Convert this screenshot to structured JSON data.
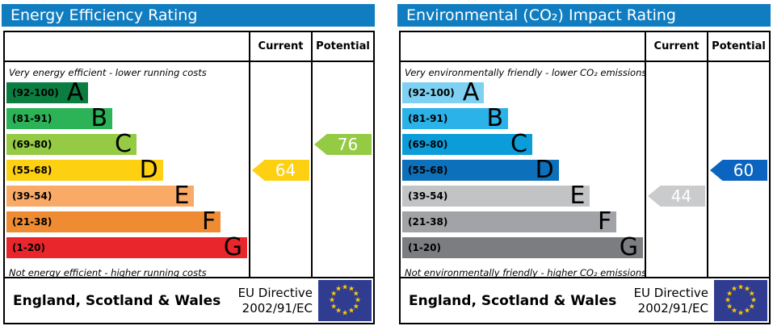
{
  "colors": {
    "header_bg": "#117dc1",
    "flag_bg": "#303c8f",
    "star": "#ffcc00",
    "border": "#000000",
    "arrow_text": "#ffffff"
  },
  "panels": [
    {
      "title": "Energy Efficiency Rating",
      "header": {
        "current": "Current",
        "potential": "Potential"
      },
      "top_note": "Very energy efficient - lower running costs",
      "bottom_note": "Not energy efficient - higher running costs",
      "bands": [
        {
          "grade": "A",
          "range": "(92-100)",
          "color": "#0b7d41",
          "width_pct": 34
        },
        {
          "grade": "B",
          "range": "(81-91)",
          "color": "#2cb357",
          "width_pct": 44
        },
        {
          "grade": "C",
          "range": "(69-80)",
          "color": "#95ca44",
          "width_pct": 54
        },
        {
          "grade": "D",
          "range": "(55-68)",
          "color": "#fdd012",
          "width_pct": 65
        },
        {
          "grade": "E",
          "range": "(39-54)",
          "color": "#f9aa67",
          "width_pct": 78
        },
        {
          "grade": "F",
          "range": "(21-38)",
          "color": "#ee8b33",
          "width_pct": 89
        },
        {
          "grade": "G",
          "range": "(1-20)",
          "color": "#e9262c",
          "width_pct": 100
        }
      ],
      "current": {
        "value": 64,
        "band": "D",
        "color": "#fdd012"
      },
      "potential": {
        "value": 76,
        "band": "C",
        "color": "#95ca44"
      },
      "footer": {
        "region": "England, Scotland & Wales",
        "directive_line1": "EU Directive",
        "directive_line2": "2002/91/EC"
      }
    },
    {
      "title": "Environmental (CO₂) Impact Rating",
      "header": {
        "current": "Current",
        "potential": "Potential"
      },
      "top_note": "Very environmentally friendly - lower CO₂ emissions",
      "bottom_note": "Not environmentally friendly - higher CO₂ emissions",
      "bands": [
        {
          "grade": "A",
          "range": "(92-100)",
          "color": "#7ed1f2",
          "width_pct": 34
        },
        {
          "grade": "B",
          "range": "(81-91)",
          "color": "#2bb2e8",
          "width_pct": 44
        },
        {
          "grade": "C",
          "range": "(69-80)",
          "color": "#0b9dd9",
          "width_pct": 54
        },
        {
          "grade": "D",
          "range": "(55-68)",
          "color": "#0c70ba",
          "width_pct": 65
        },
        {
          "grade": "E",
          "range": "(39-54)",
          "color": "#c1c3c5",
          "width_pct": 78
        },
        {
          "grade": "F",
          "range": "(21-38)",
          "color": "#a1a3a6",
          "width_pct": 89
        },
        {
          "grade": "G",
          "range": "(1-20)",
          "color": "#7b7d80",
          "width_pct": 100
        }
      ],
      "current": {
        "value": 44,
        "band": "E",
        "color": "#c9cbcd"
      },
      "potential": {
        "value": 60,
        "band": "D",
        "color": "#0a64c0"
      },
      "footer": {
        "region": "England, Scotland & Wales",
        "directive_line1": "EU Directive",
        "directive_line2": "2002/91/EC"
      }
    }
  ],
  "chart_data": [
    {
      "type": "bar",
      "title": "Energy Efficiency Rating",
      "categories": [
        "A (92-100)",
        "B (81-91)",
        "C (69-80)",
        "D (55-68)",
        "E (39-54)",
        "F (21-38)",
        "G (1-20)"
      ],
      "series": [
        {
          "name": "Current",
          "value": 64,
          "band": "D"
        },
        {
          "name": "Potential",
          "value": 76,
          "band": "C"
        }
      ],
      "annotations": [
        "Very energy efficient - lower running costs",
        "Not energy efficient - higher running costs",
        "England, Scotland & Wales",
        "EU Directive 2002/91/EC"
      ],
      "value_range": [
        1,
        100
      ]
    },
    {
      "type": "bar",
      "title": "Environmental (CO₂) Impact Rating",
      "categories": [
        "A (92-100)",
        "B (81-91)",
        "C (69-80)",
        "D (55-68)",
        "E (39-54)",
        "F (21-38)",
        "G (1-20)"
      ],
      "series": [
        {
          "name": "Current",
          "value": 44,
          "band": "E"
        },
        {
          "name": "Potential",
          "value": 60,
          "band": "D"
        }
      ],
      "annotations": [
        "Very environmentally friendly - lower CO₂ emissions",
        "Not environmentally friendly - higher CO₂ emissions",
        "England, Scotland & Wales",
        "EU Directive 2002/91/EC"
      ],
      "value_range": [
        1,
        100
      ]
    }
  ]
}
